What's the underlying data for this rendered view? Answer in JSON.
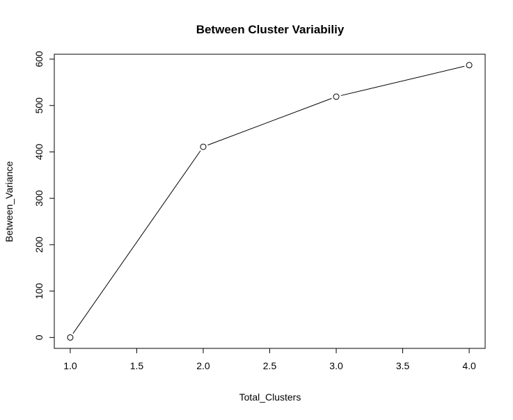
{
  "chart_data": {
    "type": "line",
    "title": "Between Cluster Variabiliy",
    "xlabel": "Total_Clusters",
    "ylabel": "Between_Variance",
    "x": [
      1.0,
      2.0,
      3.0,
      4.0
    ],
    "y": [
      0,
      411,
      519,
      587
    ],
    "xlim": [
      0.88,
      4.12
    ],
    "ylim": [
      -23.5,
      610.5
    ],
    "x_ticks": [
      1.0,
      1.5,
      2.0,
      2.5,
      3.0,
      3.5,
      4.0
    ],
    "x_tick_labels": [
      "1.0",
      "1.5",
      "2.0",
      "2.5",
      "3.0",
      "3.5",
      "4.0"
    ],
    "y_ticks": [
      0,
      100,
      200,
      300,
      400,
      500,
      600
    ],
    "y_tick_labels": [
      "0",
      "100",
      "200",
      "300",
      "400",
      "500",
      "600"
    ],
    "marker": "open-circle",
    "grid": false,
    "colors": {
      "line": "#000000",
      "marker_fill": "#ffffff",
      "axes": "#000000",
      "background": "#ffffff"
    }
  }
}
